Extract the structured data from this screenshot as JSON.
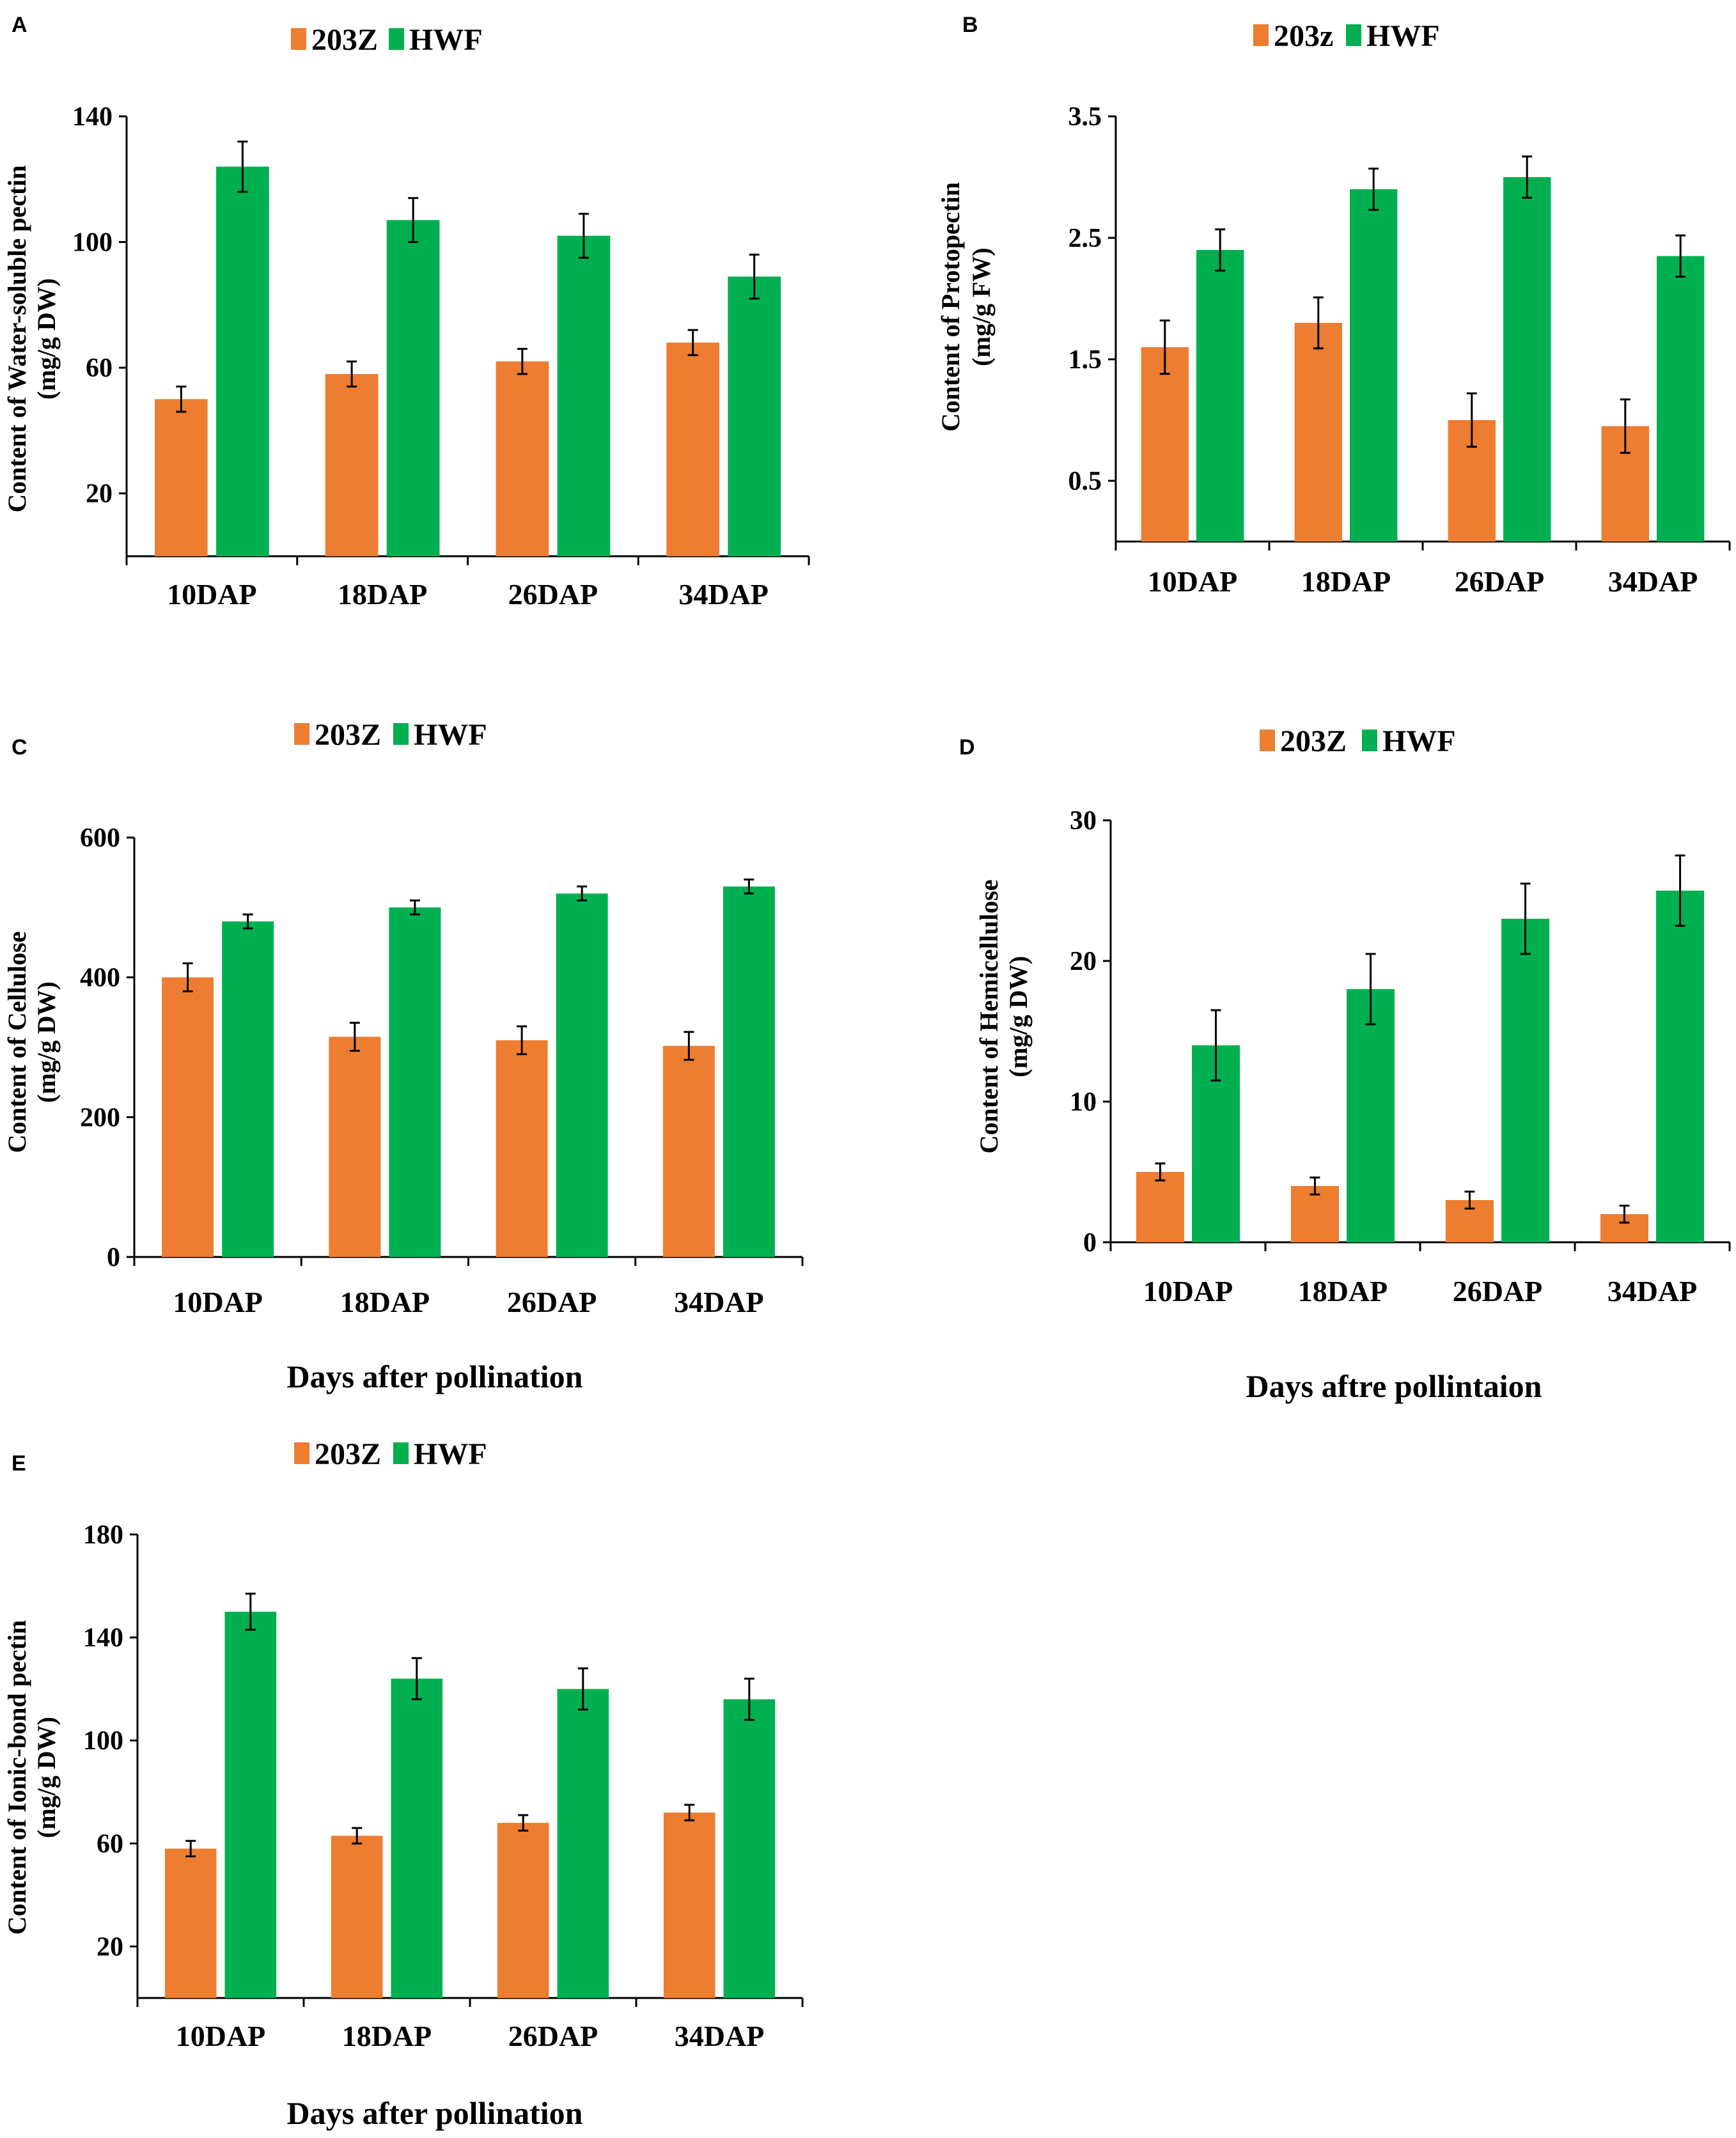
{
  "colors": {
    "s203Z": "#ED7D31",
    "HWF": "#00B050",
    "axis": "#000000",
    "error": "#000000"
  },
  "chart_data": [
    {
      "panel": "A",
      "type": "bar",
      "legend": [
        "203Z",
        "HWF"
      ],
      "categories": [
        "10DAP",
        "18DAP",
        "26DAP",
        "34DAP"
      ],
      "series": [
        {
          "name": "203Z",
          "values": [
            50,
            58,
            62,
            68
          ],
          "errors": [
            4,
            4,
            4,
            4
          ]
        },
        {
          "name": "HWF",
          "values": [
            124,
            107,
            102,
            89
          ],
          "errors": [
            8,
            7,
            7,
            7
          ]
        }
      ],
      "ylim": [
        0,
        140
      ],
      "ylabel": [
        "Content of Water-soluble pectin",
        "(mg/g DW)"
      ],
      "yticks": [
        20,
        60,
        100,
        140
      ],
      "ytick_labels": [
        "20",
        "60",
        "100",
        "140"
      ],
      "xlabel": ""
    },
    {
      "panel": "B",
      "type": "bar",
      "legend": [
        "203z",
        "HWF"
      ],
      "categories": [
        "10DAP",
        "18DAP",
        "26DAP",
        "34DAP"
      ],
      "series": [
        {
          "name": "203z",
          "values": [
            1.6,
            1.8,
            1.0,
            0.95
          ],
          "errors": [
            0.22,
            0.21,
            0.22,
            0.22
          ]
        },
        {
          "name": "HWF",
          "values": [
            2.4,
            2.9,
            3.0,
            2.35
          ],
          "errors": [
            0.17,
            0.17,
            0.17,
            0.17
          ]
        }
      ],
      "ylim": [
        0,
        3.5
      ],
      "ylabel": [
        "Content of Protopectin",
        "(mg/g FW)"
      ],
      "yticks": [
        0.5,
        1.5,
        2.5,
        3.5
      ],
      "ytick_labels": [
        "0.5",
        "1.5",
        "2.5",
        "3.5"
      ],
      "xlabel": ""
    },
    {
      "panel": "C",
      "type": "bar",
      "legend": [
        "203Z",
        "HWF"
      ],
      "categories": [
        "10DAP",
        "18DAP",
        "26DAP",
        "34DAP"
      ],
      "series": [
        {
          "name": "203Z",
          "values": [
            400,
            315,
            310,
            302
          ],
          "errors": [
            20,
            20,
            20,
            20
          ]
        },
        {
          "name": "HWF",
          "values": [
            480,
            500,
            520,
            530
          ],
          "errors": [
            10,
            10,
            10,
            10
          ]
        }
      ],
      "ylim": [
        0,
        600
      ],
      "ylabel": [
        "Content of Cellulose",
        "(mg/g DW)"
      ],
      "yticks": [
        0,
        200,
        400,
        600
      ],
      "ytick_labels": [
        "0",
        "200",
        "400",
        "600"
      ],
      "xlabel": "Days after pollination"
    },
    {
      "panel": "D",
      "type": "bar",
      "legend": [
        "203Z",
        "HWF"
      ],
      "categories": [
        "10DAP",
        "18DAP",
        "26DAP",
        "34DAP"
      ],
      "series": [
        {
          "name": "203Z",
          "values": [
            5,
            4,
            3,
            2
          ],
          "errors": [
            0.6,
            0.6,
            0.6,
            0.6
          ]
        },
        {
          "name": "HWF",
          "values": [
            14,
            18,
            23,
            25
          ],
          "errors": [
            2.5,
            2.5,
            2.5,
            2.5
          ]
        }
      ],
      "ylim": [
        0,
        30
      ],
      "ylabel": [
        "Content of Hemicellulose",
        "(mg/g DW)"
      ],
      "yticks": [
        0,
        10,
        20,
        30
      ],
      "ytick_labels": [
        "0",
        "10",
        "20",
        "30"
      ],
      "xlabel": "Days aftre pollintaion"
    },
    {
      "panel": "E",
      "type": "bar",
      "legend": [
        "203Z",
        "HWF"
      ],
      "categories": [
        "10DAP",
        "18DAP",
        "26DAP",
        "34DAP"
      ],
      "series": [
        {
          "name": "203Z",
          "values": [
            58,
            63,
            68,
            72
          ],
          "errors": [
            3,
            3,
            3,
            3
          ]
        },
        {
          "name": "HWF",
          "values": [
            150,
            124,
            120,
            116
          ],
          "errors": [
            7,
            8,
            8,
            8
          ]
        }
      ],
      "ylim": [
        0,
        180
      ],
      "ylabel": [
        "Content of Ionic-bond pectin",
        "(mg/g DW)"
      ],
      "yticks": [
        20,
        60,
        100,
        140,
        180
      ],
      "ytick_labels": [
        "20",
        "60",
        "100",
        "140",
        "180"
      ],
      "xlabel": "Days after pollination"
    }
  ]
}
